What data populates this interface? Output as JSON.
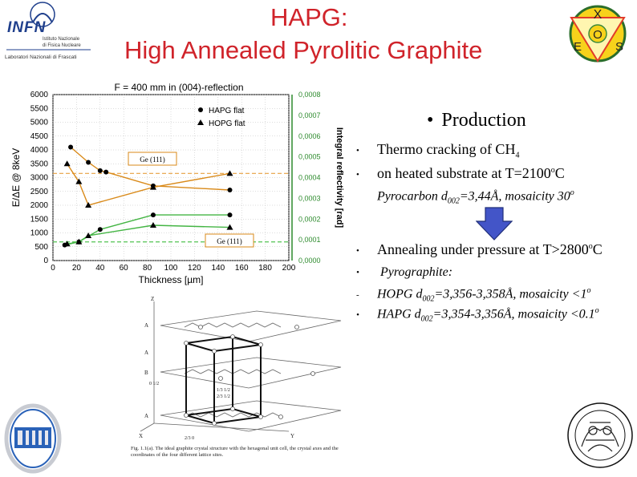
{
  "slide": {
    "title_line1": "HAPG:",
    "title_line2": "High Annealed Pyrolitic Graphite"
  },
  "infn_logo": {
    "name": "INFN",
    "line1": "Istituto Nazionale",
    "line2": "di Fisica Nucleare",
    "line3": "Laboratori Nazionali di Frascati"
  },
  "xos_logo": {
    "top": "X",
    "left": "E",
    "center": "O",
    "right": "S"
  },
  "bullets": {
    "heading": "Production",
    "item1": "Thermo cracking of CH",
    "item1_sub": "4",
    "item2": "on heated substrate at T=2100",
    "item2_sup": "o",
    "item2_unit": "C",
    "item3_a": "Pyrocarbon d",
    "item3_sub": "002",
    "item3_b": "=3,44Å, mosaicity 30",
    "item3_sup": "o",
    "item4": "Annealing under pressure at T>2800",
    "item4_sup": "o",
    "item4_unit": "C",
    "item5": "Pyrographite:",
    "item6_a": "HOPG d",
    "item6_sub": "002",
    "item6_b": "=3,356-3,358Å, mosaicity <1",
    "item6_sup": "o",
    "item7_a": "HAPG d",
    "item7_sub": "002",
    "item7_b": "=3,354-3,356Å, mosaicity <0.1",
    "item7_sup": "o"
  },
  "crystal": {
    "caption": "Fig. 1.1(a). The ideal graphite crystal structure with the hexagonal unit cell, the crystal axes and the coordinates of the four different lattice sites.",
    "label_z": "Z",
    "label_x": "X",
    "label_y": "Y",
    "label_a1": "A",
    "label_b": "B",
    "label_b_frac": "0 1/2",
    "label_a2": "A",
    "label_a3": "A",
    "label_bottom": "2/3 0",
    "label_c1": "1/3 1/2",
    "label_c2": "2/3 1/2"
  },
  "chart_data": {
    "type": "line",
    "title": "F = 400 mm in (004)-reflection",
    "xlabel": "Thickness [µm]",
    "ylabel": "E/ΔE @ 8keV",
    "y2label": "Integral reflectivity [rad]",
    "xlim": [
      0,
      200
    ],
    "ylim": [
      0,
      6000
    ],
    "y2lim": [
      0,
      0.0008
    ],
    "xticks": [
      "0",
      "20",
      "40",
      "60",
      "80",
      "100",
      "120",
      "140",
      "160",
      "180",
      "200"
    ],
    "yticks": [
      "0",
      "500",
      "1000",
      "1500",
      "2000",
      "2500",
      "3000",
      "3500",
      "4000",
      "4500",
      "5000",
      "5500",
      "6000"
    ],
    "y2ticks": [
      "0,0000",
      "0,0001",
      "0,0002",
      "0,0003",
      "0,0004",
      "0,0005",
      "0,0006",
      "0,0007",
      "0,0008"
    ],
    "legend": [
      "HAPG flat",
      "HOPG flat"
    ],
    "legend_position": "top-right",
    "annotations": [
      "Ge (111)",
      "Ge (111)"
    ],
    "series": [
      {
        "name": "HAPG flat",
        "axis": "E/ΔE",
        "marker": "circle",
        "x": [
          15,
          30,
          40,
          45,
          85,
          150
        ],
        "y": [
          4100,
          3550,
          3250,
          3200,
          2700,
          2550
        ]
      },
      {
        "name": "HOPG flat",
        "axis": "E/ΔE",
        "marker": "triangle",
        "x": [
          12,
          22,
          30,
          85,
          150
        ],
        "y": [
          3500,
          2850,
          2000,
          2650,
          3150
        ]
      },
      {
        "name": "HAPG flat",
        "axis": "reflectivity",
        "marker": "circle",
        "x": [
          10,
          22,
          40,
          85,
          150
        ],
        "y": [
          7.5e-05,
          9e-05,
          0.00015,
          0.00022,
          0.00022
        ]
      },
      {
        "name": "HOPG flat",
        "axis": "reflectivity",
        "marker": "triangle",
        "x": [
          12,
          22,
          30,
          85,
          150
        ],
        "y": [
          8e-05,
          9e-05,
          0.00012,
          0.00017,
          0.00016
        ]
      }
    ],
    "colors": {
      "curve": "#d98a1a",
      "curve_green": "#44b544",
      "ref_line": "#e8a040",
      "ref_green": "#53c353",
      "right_axis": "#2e8b2e"
    }
  }
}
